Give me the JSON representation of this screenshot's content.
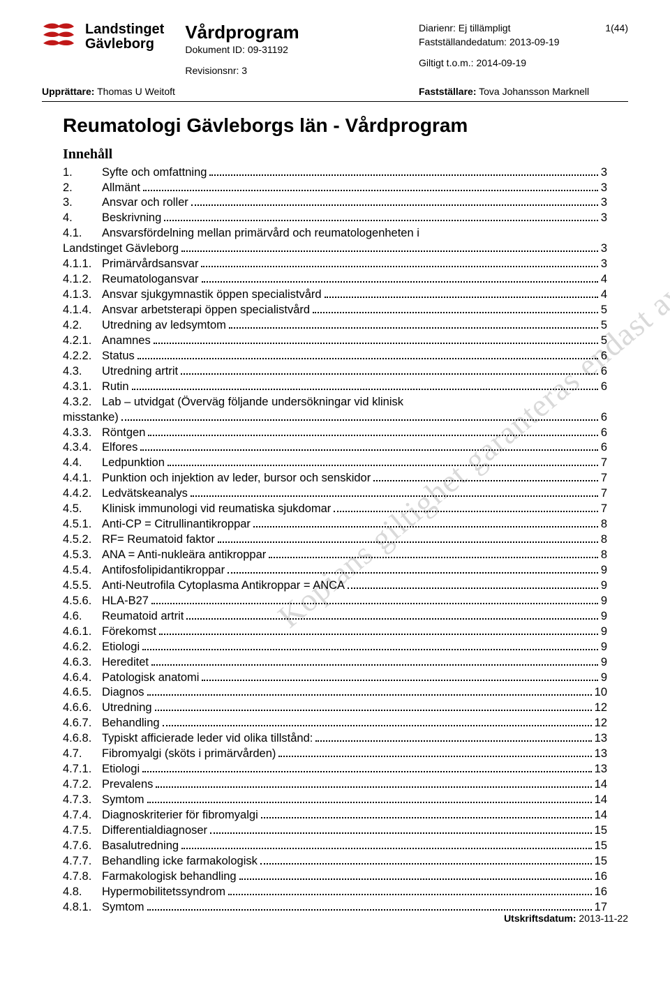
{
  "header": {
    "org_line1": "Landstinget",
    "org_line2": "Gävleborg",
    "doc_type": "Vårdprogram",
    "doc_id_label": "Dokument ID:",
    "doc_id_value": "09-31192",
    "rev_label": "Revisionsnr:",
    "rev_value": "3",
    "diarienr_label": "Diarienr:",
    "diarienr_value": "Ej tillämpligt",
    "page_indicator": "1(44)",
    "faststall_label": "Fastställandedatum:",
    "faststall_value": "2013-09-19",
    "giltigt_label": "Giltigt t.o.m.:",
    "giltigt_value": "2014-09-19",
    "upprattare_label": "Upprättare:",
    "upprattare_value": "Thomas U Weitoft",
    "faststallare_label": "Fastställare:",
    "faststallare_value": "Tova Johansson Marknell"
  },
  "title": "Reumatologi Gävleborgs län - Vårdprogram",
  "toc_heading": "Innehåll",
  "watermark": "Kopians giltighet garanteras endast av utskriftsdatumet",
  "footer_label": "Utskriftsdatum:",
  "footer_value": "2013-11-22",
  "toc": [
    {
      "num": "1.",
      "label": "Syfte och omfattning",
      "page": "3",
      "indent": 0
    },
    {
      "num": "2.",
      "label": "Allmänt",
      "page": "3",
      "indent": 0
    },
    {
      "num": "3.",
      "label": "Ansvar och roller",
      "page": "3",
      "indent": 0
    },
    {
      "num": "4.",
      "label": "Beskrivning",
      "page": "3",
      "indent": 0
    },
    {
      "num": "4.1.",
      "label": "Ansvarsfördelning mellan primärvård och reumatologenheten i",
      "page": "",
      "indent": 0,
      "nowrap": false
    },
    {
      "num": "",
      "label": "Landstinget Gävleborg",
      "page": "3",
      "indent": 0,
      "continuation": true
    },
    {
      "num": "4.1.1.",
      "label": "Primärvårdsansvar",
      "page": "3",
      "indent": 1
    },
    {
      "num": "4.1.2.",
      "label": "Reumatologansvar",
      "page": "4",
      "indent": 1
    },
    {
      "num": "4.1.3.",
      "label": "Ansvar sjukgymnastik öppen specialistvård",
      "page": "4",
      "indent": 1
    },
    {
      "num": "4.1.4.",
      "label": "Ansvar arbetsterapi öppen specialistvård",
      "page": "5",
      "indent": 1
    },
    {
      "num": "4.2.",
      "label": "Utredning av ledsymtom",
      "page": "5",
      "indent": 0
    },
    {
      "num": "4.2.1.",
      "label": "Anamnes",
      "page": "5",
      "indent": 1
    },
    {
      "num": "4.2.2.",
      "label": "Status",
      "page": "6",
      "indent": 1
    },
    {
      "num": "4.3.",
      "label": "Utredning artrit",
      "page": "6",
      "indent": 0
    },
    {
      "num": "4.3.1.",
      "label": "Rutin",
      "page": "6",
      "indent": 1
    },
    {
      "num": "4.3.2.",
      "label": "Lab – utvidgat (Överväg följande undersökningar vid klinisk",
      "page": "",
      "indent": 1,
      "nowrap": false
    },
    {
      "num": "",
      "label": "misstanke)",
      "page": "6",
      "indent": 0,
      "continuation": true
    },
    {
      "num": "4.3.3.",
      "label": "Röntgen",
      "page": "6",
      "indent": 1
    },
    {
      "num": "4.3.4.",
      "label": "Elfores",
      "page": "6",
      "indent": 1
    },
    {
      "num": "4.4.",
      "label": "Ledpunktion",
      "page": "7",
      "indent": 0
    },
    {
      "num": "4.4.1.",
      "label": "Punktion och injektion av leder, bursor och senskidor",
      "page": "7",
      "indent": 1
    },
    {
      "num": "4.4.2.",
      "label": "Ledvätskeanalys",
      "page": "7",
      "indent": 1
    },
    {
      "num": "4.5.",
      "label": "Klinisk immunologi vid reumatiska sjukdomar",
      "page": "7",
      "indent": 0
    },
    {
      "num": "4.5.1.",
      "label": "Anti-CP = Citrullinantikroppar",
      "page": "8",
      "indent": 1
    },
    {
      "num": "4.5.2.",
      "label": "RF= Reumatoid faktor",
      "page": "8",
      "indent": 1
    },
    {
      "num": "4.5.3.",
      "label": "ANA = Anti-nukleära antikroppar",
      "page": "8",
      "indent": 1
    },
    {
      "num": "4.5.4.",
      "label": "Antifosfolipidantikroppar",
      "page": "9",
      "indent": 1
    },
    {
      "num": "4.5.5.",
      "label": "Anti-Neutrofila Cytoplasma Antikroppar = ANCA",
      "page": "9",
      "indent": 1
    },
    {
      "num": "4.5.6.",
      "label": "HLA-B27",
      "page": "9",
      "indent": 1
    },
    {
      "num": "4.6.",
      "label": "Reumatoid artrit",
      "page": "9",
      "indent": 0
    },
    {
      "num": "4.6.1.",
      "label": "Förekomst",
      "page": "9",
      "indent": 1
    },
    {
      "num": "4.6.2.",
      "label": "Etiologi",
      "page": "9",
      "indent": 1
    },
    {
      "num": "4.6.3.",
      "label": "Hereditet",
      "page": "9",
      "indent": 1
    },
    {
      "num": "4.6.4.",
      "label": "Patologisk anatomi",
      "page": "9",
      "indent": 1
    },
    {
      "num": "4.6.5.",
      "label": "Diagnos",
      "page": "10",
      "indent": 1
    },
    {
      "num": "4.6.6.",
      "label": "Utredning",
      "page": "12",
      "indent": 1
    },
    {
      "num": "4.6.7.",
      "label": "Behandling",
      "page": "12",
      "indent": 1
    },
    {
      "num": "4.6.8.",
      "label": "Typiskt afficierade leder vid olika tillstånd:",
      "page": "13",
      "indent": 1
    },
    {
      "num": "4.7.",
      "label": "Fibromyalgi (sköts i primärvården)",
      "page": "13",
      "indent": 0
    },
    {
      "num": "4.7.1.",
      "label": "Etiologi",
      "page": "13",
      "indent": 1
    },
    {
      "num": "4.7.2.",
      "label": "Prevalens",
      "page": "14",
      "indent": 1
    },
    {
      "num": "4.7.3.",
      "label": "Symtom",
      "page": "14",
      "indent": 1
    },
    {
      "num": "4.7.4.",
      "label": "Diagnoskriterier för fibromyalgi",
      "page": "14",
      "indent": 1
    },
    {
      "num": "4.7.5.",
      "label": "Differentialdiagnoser",
      "page": "15",
      "indent": 1
    },
    {
      "num": "4.7.6.",
      "label": "Basalutredning",
      "page": "15",
      "indent": 1
    },
    {
      "num": "4.7.7.",
      "label": "Behandling icke farmakologisk",
      "page": "15",
      "indent": 1
    },
    {
      "num": "4.7.8.",
      "label": "Farmakologisk behandling",
      "page": "16",
      "indent": 1
    },
    {
      "num": "4.8.",
      "label": "Hypermobilitetssyndrom",
      "page": "16",
      "indent": 0
    },
    {
      "num": "4.8.1.",
      "label": "Symtom",
      "page": "17",
      "indent": 1
    }
  ],
  "colors": {
    "logo_red": "#c01818",
    "text": "#000000",
    "watermark": "#d9d9d9",
    "background": "#ffffff"
  }
}
